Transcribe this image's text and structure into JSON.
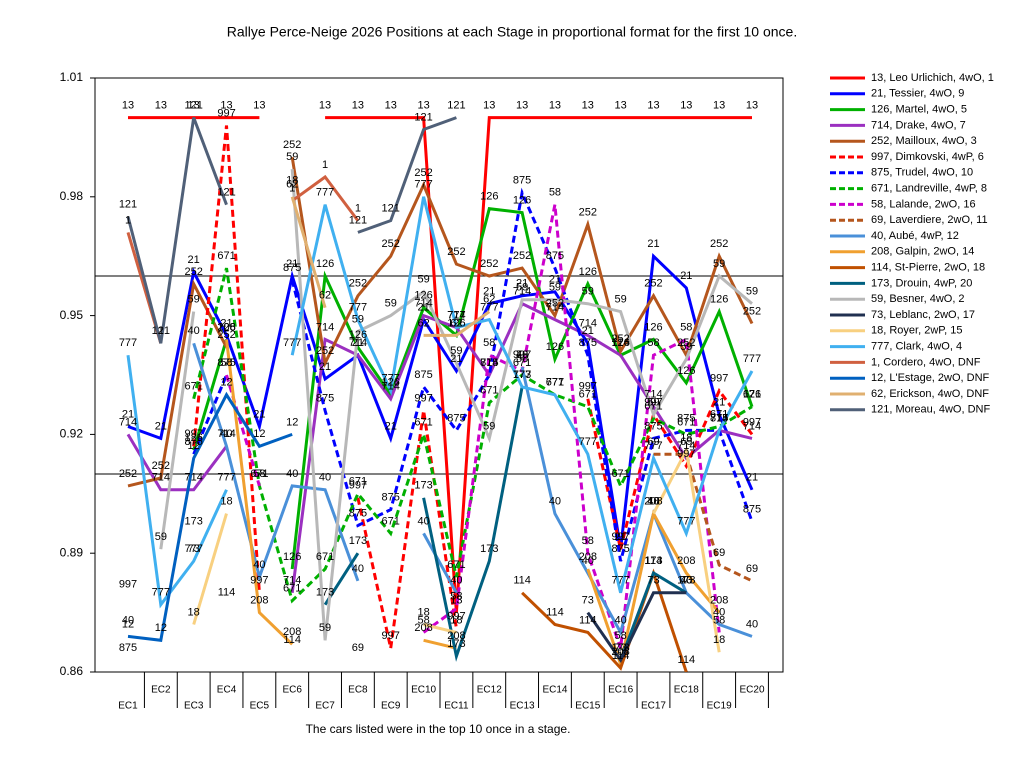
{
  "chart_data": {
    "type": "line",
    "title": "Rallye Perce-Neige 2026  Positions at each Stage in proportional format for the first 10 once.",
    "footer": "The cars listed were in the top 10 once in a stage.",
    "categories": [
      "EC1",
      "EC2",
      "EC3",
      "EC4",
      "EC5",
      "EC6",
      "EC7",
      "EC8",
      "EC9",
      "EC10",
      "EC11",
      "EC12",
      "EC13",
      "EC14",
      "EC15",
      "EC16",
      "EC17",
      "EC18",
      "EC19",
      "EC20"
    ],
    "ylim": [
      0.86,
      1.01
    ],
    "yticks": [
      0.86,
      0.89,
      0.92,
      0.95,
      0.98,
      1.01
    ],
    "reference_lines": [
      0.96,
      0.91
    ],
    "legend": "right",
    "series": [
      {
        "name": "13, Leo Urlichich, 4wO, 1",
        "label": "13",
        "color": "#ff0000",
        "dash": false,
        "values": [
          1.0,
          1.0,
          1.0,
          1.0,
          1.0,
          null,
          1.0,
          1.0,
          1.0,
          1.0,
          0.875,
          1.0,
          1.0,
          1.0,
          1.0,
          1.0,
          1.0,
          1.0,
          1.0,
          1.0
        ]
      },
      {
        "name": "21, Tessier, 4wO, 9",
        "label": "21",
        "color": "#0000ff",
        "dash": false,
        "values": [
          0.922,
          0.919,
          0.961,
          0.945,
          0.922,
          0.96,
          0.934,
          0.94,
          0.919,
          0.949,
          0.936,
          0.953,
          0.955,
          0.956,
          0.943,
          0.891,
          0.965,
          0.957,
          0.925,
          0.906
        ]
      },
      {
        "name": "126, Martel, 4wO, 5",
        "label": "126",
        "color": "#00b000",
        "dash": false,
        "values": [
          null,
          null,
          0.916,
          0.944,
          null,
          0.886,
          0.96,
          0.942,
          0.93,
          0.952,
          0.945,
          0.977,
          0.976,
          0.939,
          0.958,
          0.94,
          0.944,
          0.933,
          0.951,
          0.927
        ]
      },
      {
        "name": "714, Drake, 4wO, 7",
        "label": "714",
        "color": "#9b30c0",
        "dash": false,
        "values": [
          0.92,
          0.906,
          0.906,
          0.917,
          null,
          0.88,
          0.944,
          0.94,
          0.929,
          0.95,
          0.947,
          0.935,
          0.953,
          0.949,
          0.945,
          0.94,
          0.927,
          0.914,
          0.921,
          0.919
        ]
      },
      {
        "name": "252, Mailloux, 4wO, 3",
        "label": "252",
        "color": "#b5561d",
        "dash": false,
        "values": [
          0.907,
          0.909,
          0.958,
          0.942,
          null,
          0.99,
          0.938,
          0.955,
          0.965,
          0.983,
          0.963,
          0.96,
          0.962,
          0.95,
          0.973,
          0.941,
          0.955,
          0.94,
          0.965,
          0.948
        ]
      },
      {
        "name": "997, Dimkovski, 4wP, 6",
        "label": "997",
        "color": "#ff0000",
        "dash": true,
        "values": [
          0.879,
          null,
          0.917,
          0.998,
          0.88,
          null,
          null,
          0.904,
          0.866,
          0.926,
          0.871,
          null,
          0.937,
          null,
          0.929,
          0.891,
          0.925,
          0.912,
          0.931,
          0.92
        ]
      },
      {
        "name": "875, Trudel, 4wO, 10",
        "label": "875",
        "color": "#0000ff",
        "dash": true,
        "values": [
          0.863,
          null,
          0.915,
          0.935,
          null,
          0.959,
          0.926,
          0.897,
          0.901,
          0.932,
          0.921,
          0.935,
          0.981,
          0.962,
          0.94,
          0.888,
          0.919,
          0.921,
          0.921,
          0.898
        ]
      },
      {
        "name": "671, Landreville, 4wP, 8",
        "label": "671",
        "color": "#00b000",
        "dash": true,
        "values": [
          null,
          null,
          0.929,
          0.962,
          0.907,
          0.878,
          0.886,
          0.905,
          0.895,
          0.92,
          0.884,
          0.928,
          0.935,
          0.93,
          0.927,
          0.907,
          0.924,
          0.92,
          0.922,
          0.927
        ]
      },
      {
        "name": "58, Lalande, 2wO, 16",
        "label": "58",
        "color": "#cc00cc",
        "dash": true,
        "values": [
          null,
          null,
          null,
          0.935,
          0.907,
          null,
          null,
          null,
          null,
          0.87,
          0.876,
          0.94,
          0.936,
          0.978,
          0.89,
          0.866,
          0.94,
          0.944,
          0.87,
          null
        ]
      },
      {
        "name": "69, Laverdiere, 2wO, 11",
        "label": "69",
        "color": "#b5561d",
        "dash": true,
        "values": [
          null,
          null,
          null,
          null,
          null,
          null,
          null,
          0.863,
          null,
          null,
          null,
          null,
          null,
          null,
          null,
          null,
          0.915,
          0.915,
          0.887,
          0.883
        ]
      },
      {
        "name": "40, Aubé, 4wP, 12",
        "label": "40",
        "color": "#4a90d9",
        "dash": false,
        "values": [
          0.87,
          null,
          0.943,
          0.917,
          0.884,
          0.907,
          0.906,
          0.883,
          null,
          0.895,
          0.88,
          null,
          0.937,
          0.9,
          0.885,
          0.87,
          0.9,
          0.88,
          0.872,
          0.869
        ]
      },
      {
        "name": "208, Galpin, 2wO, 14",
        "label": "208",
        "color": "#f0a030",
        "dash": false,
        "values": [
          null,
          null,
          null,
          0.944,
          0.875,
          0.867,
          null,
          null,
          null,
          0.868,
          0.866,
          null,
          null,
          null,
          0.886,
          0.862,
          0.9,
          0.885,
          0.875,
          null
        ]
      },
      {
        "name": "114, St-Pierre, 2wO, 18",
        "label": "114",
        "color": "#c05000",
        "dash": false,
        "values": [
          null,
          null,
          null,
          0.877,
          null,
          0.865,
          null,
          null,
          null,
          null,
          null,
          null,
          0.88,
          0.872,
          0.87,
          0.861,
          0.885,
          0.86,
          null,
          null
        ]
      },
      {
        "name": "173, Drouin, 4wP, 20",
        "label": "173",
        "color": "#006080",
        "dash": false,
        "values": [
          null,
          null,
          0.895,
          null,
          null,
          null,
          0.877,
          0.89,
          null,
          0.904,
          0.864,
          0.888,
          0.932,
          null,
          null,
          0.863,
          0.885,
          0.88,
          null,
          null
        ]
      },
      {
        "name": "59, Besner, 4wO, 2",
        "label": "59",
        "color": "#b8b8b8",
        "dash": false,
        "values": [
          null,
          0.891,
          0.951,
          null,
          null,
          0.987,
          0.868,
          0.946,
          0.95,
          0.956,
          0.938,
          0.919,
          0.954,
          0.954,
          0.953,
          0.951,
          0.925,
          0.939,
          0.96,
          0.953
        ]
      },
      {
        "name": "73, Leblanc, 2wO, 17",
        "label": "73",
        "color": "#203050",
        "dash": false,
        "values": [
          null,
          null,
          0.888,
          null,
          null,
          null,
          null,
          null,
          null,
          null,
          null,
          null,
          0.937,
          null,
          0.875,
          0.863,
          0.88,
          0.88,
          null,
          null
        ]
      },
      {
        "name": "18, Royer, 2wP, 15",
        "label": "18",
        "color": "#f8d080",
        "dash": false,
        "values": [
          null,
          null,
          0.872,
          0.9,
          null,
          0.981,
          null,
          null,
          null,
          0.872,
          0.87,
          null,
          null,
          null,
          null,
          null,
          0.9,
          0.916,
          0.865,
          null
        ]
      },
      {
        "name": "777, Clark, 4wO, 4",
        "label": "777",
        "color": "#40b0f0",
        "dash": false,
        "values": [
          0.94,
          0.877,
          0.888,
          0.906,
          null,
          0.94,
          0.978,
          0.949,
          0.931,
          0.98,
          0.947,
          0.949,
          0.932,
          0.93,
          0.915,
          0.88,
          0.914,
          0.895,
          0.921,
          0.936
        ]
      },
      {
        "name": "1, Cordero, 4wO,  DNF",
        "label": "1",
        "color": "#d06040",
        "dash": false,
        "values": [
          0.971,
          0.943,
          null,
          null,
          null,
          0.979,
          0.985,
          0.974,
          null,
          null,
          null,
          null,
          null,
          null,
          null,
          null,
          null,
          null,
          null,
          null
        ]
      },
      {
        "name": "12, L'Estage, 2wO,  DNF",
        "label": "12",
        "color": "#0060c0",
        "dash": false,
        "values": [
          0.869,
          0.868,
          0.914,
          0.93,
          0.917,
          0.92,
          null,
          null,
          null,
          null,
          null,
          null,
          null,
          null,
          null,
          null,
          null,
          null,
          null,
          null
        ]
      },
      {
        "name": "62, Erickson, 4wO,  DNF",
        "label": "62",
        "color": "#e0b070",
        "dash": false,
        "values": [
          null,
          null,
          null,
          null,
          null,
          0.98,
          0.952,
          null,
          null,
          0.945,
          0.945,
          0.951,
          null,
          null,
          null,
          null,
          null,
          null,
          null,
          null
        ]
      },
      {
        "name": "121, Moreau, 4wO,  DNF",
        "label": "121",
        "color": "#506078",
        "dash": false,
        "values": [
          0.975,
          0.943,
          1.0,
          0.978,
          null,
          null,
          null,
          0.971,
          0.974,
          0.997,
          1.0,
          null,
          null,
          null,
          null,
          null,
          null,
          null,
          null,
          null
        ]
      }
    ]
  }
}
